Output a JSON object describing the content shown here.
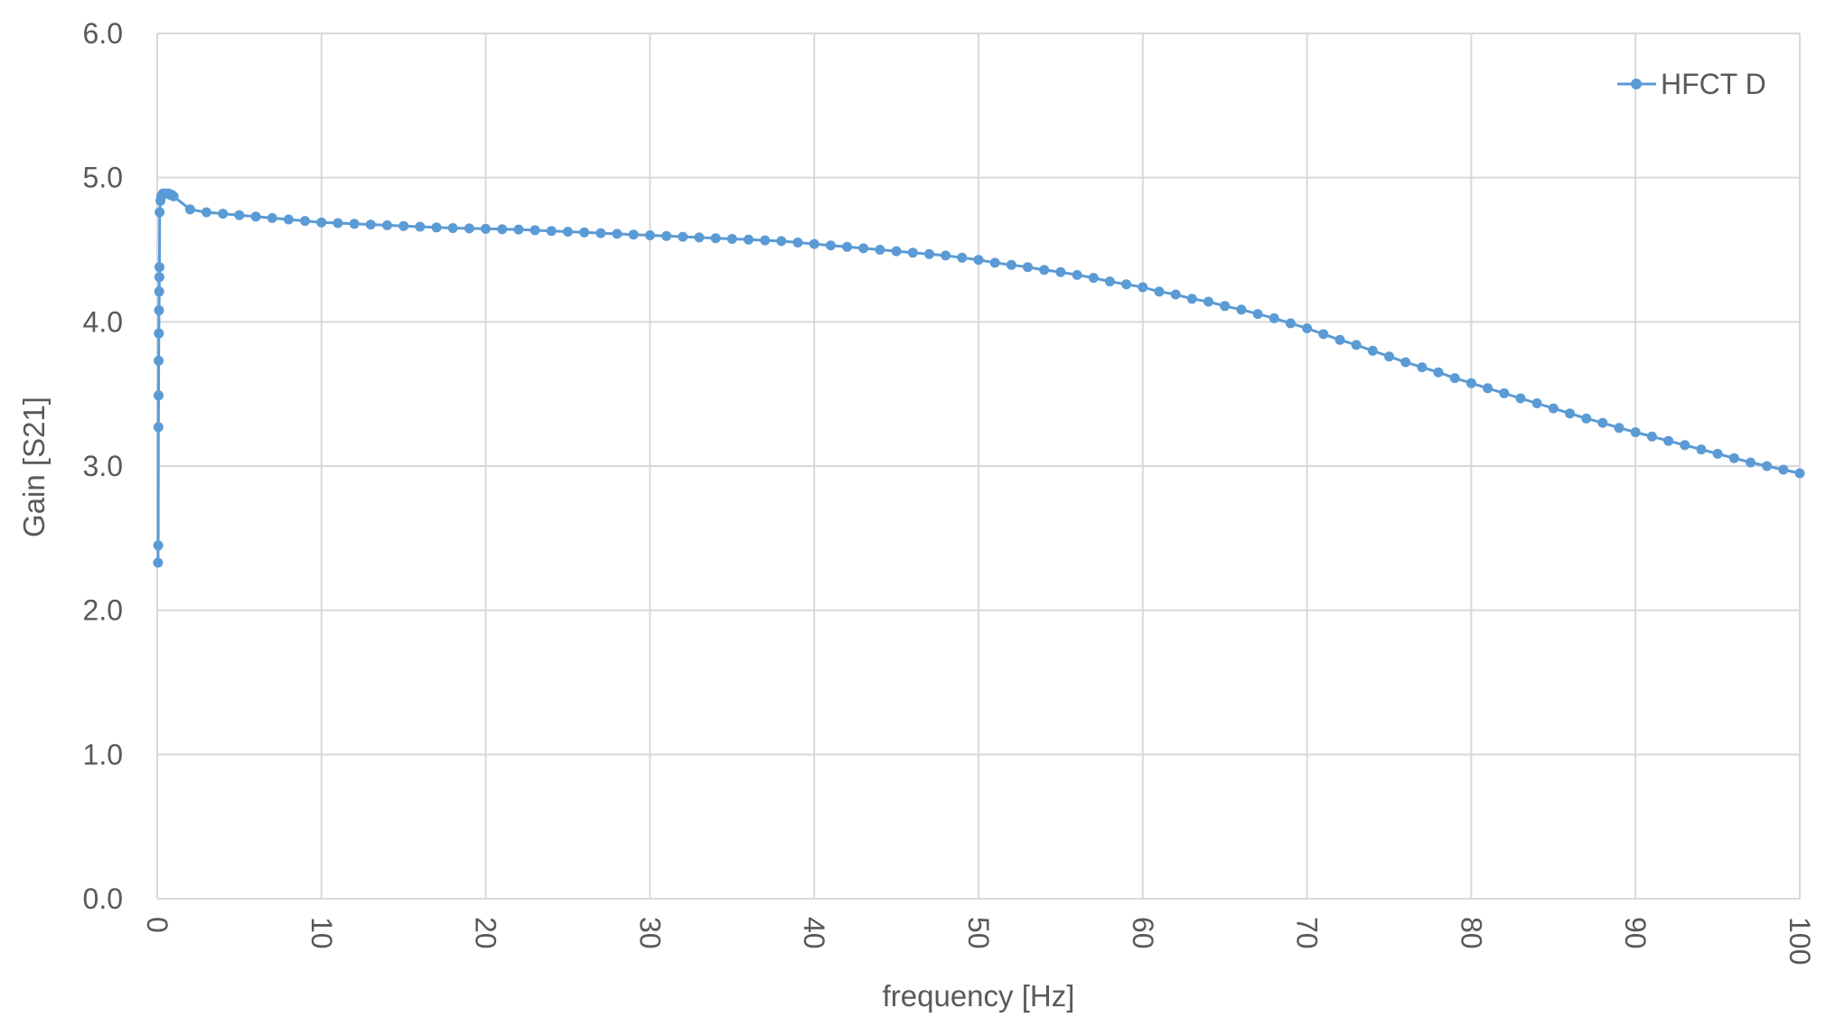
{
  "chart_data": {
    "type": "line",
    "xlabel": "frequency [Hz]",
    "ylabel": "Gain [S21]",
    "xlim": [
      0,
      100
    ],
    "ylim": [
      0,
      6
    ],
    "x_ticks": [
      "0",
      "10",
      "20",
      "30",
      "40",
      "50",
      "60",
      "70",
      "80",
      "90",
      "100"
    ],
    "y_ticks": [
      "0.0",
      "1.0",
      "2.0",
      "3.0",
      "4.0",
      "5.0",
      "6.0"
    ],
    "grid": true,
    "legend_position": "top-right",
    "series": [
      {
        "name": "HFCT D",
        "color": "#5B9BD5",
        "marker": "circle",
        "x": [
          0.05,
          0.06,
          0.07,
          0.08,
          0.09,
          0.1,
          0.11,
          0.12,
          0.13,
          0.14,
          0.15,
          0.2,
          0.25,
          0.3,
          0.35,
          0.4,
          0.5,
          0.6,
          0.7,
          0.8,
          0.9,
          1,
          2,
          3,
          4,
          5,
          6,
          7,
          8,
          9,
          10,
          11,
          12,
          13,
          14,
          15,
          16,
          17,
          18,
          19,
          20,
          21,
          22,
          23,
          24,
          25,
          26,
          27,
          28,
          29,
          30,
          31,
          32,
          33,
          34,
          35,
          36,
          37,
          38,
          39,
          40,
          41,
          42,
          43,
          44,
          45,
          46,
          47,
          48,
          49,
          50,
          51,
          52,
          53,
          54,
          55,
          56,
          57,
          58,
          59,
          60,
          61,
          62,
          63,
          64,
          65,
          66,
          67,
          68,
          69,
          70,
          71,
          72,
          73,
          74,
          75,
          76,
          77,
          78,
          79,
          80,
          81,
          82,
          83,
          84,
          85,
          86,
          87,
          88,
          89,
          90,
          91,
          92,
          93,
          94,
          95,
          96,
          97,
          98,
          99,
          100
        ],
        "values": [
          2.33,
          2.45,
          3.27,
          3.49,
          3.73,
          3.92,
          4.08,
          4.21,
          4.31,
          4.38,
          4.76,
          4.84,
          4.87,
          4.88,
          4.89,
          4.89,
          4.89,
          4.89,
          4.89,
          4.88,
          4.88,
          4.87,
          4.78,
          4.76,
          4.75,
          4.74,
          4.73,
          4.72,
          4.71,
          4.7,
          4.69,
          4.685,
          4.68,
          4.675,
          4.67,
          4.665,
          4.66,
          4.655,
          4.65,
          4.648,
          4.645,
          4.642,
          4.64,
          4.635,
          4.63,
          4.625,
          4.62,
          4.615,
          4.61,
          4.605,
          4.6,
          4.595,
          4.59,
          4.585,
          4.58,
          4.575,
          4.57,
          4.565,
          4.56,
          4.55,
          4.54,
          4.53,
          4.52,
          4.51,
          4.5,
          4.49,
          4.48,
          4.47,
          4.46,
          4.445,
          4.43,
          4.41,
          4.395,
          4.38,
          4.36,
          4.345,
          4.325,
          4.305,
          4.28,
          4.26,
          4.24,
          4.21,
          4.19,
          4.16,
          4.14,
          4.11,
          4.085,
          4.055,
          4.025,
          3.99,
          3.955,
          3.915,
          3.875,
          3.84,
          3.8,
          3.76,
          3.72,
          3.685,
          3.65,
          3.61,
          3.575,
          3.54,
          3.505,
          3.47,
          3.435,
          3.4,
          3.365,
          3.33,
          3.3,
          3.265,
          3.235,
          3.205,
          3.175,
          3.145,
          3.115,
          3.085,
          3.055,
          3.025,
          3.0,
          2.975,
          2.95
        ]
      }
    ]
  }
}
